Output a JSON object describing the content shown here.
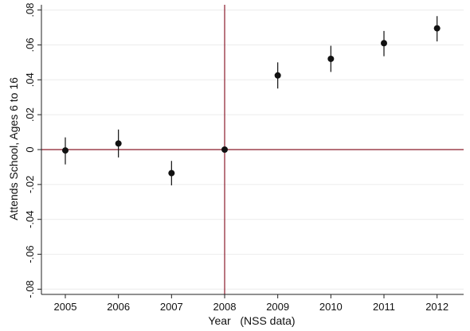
{
  "chart_data": {
    "type": "scatter",
    "title": "",
    "xlabel": "Year   (NSS data)",
    "ylabel": "Attends School, Ages 6 to 16",
    "x": [
      2005,
      2006,
      2007,
      2008,
      2009,
      2010,
      2011,
      2012
    ],
    "series": [
      {
        "values": [
          -0.0005,
          0.0035,
          -0.0135,
          0.0,
          0.0425,
          0.052,
          0.061,
          0.0695
        ],
        "ci_low": [
          -0.0085,
          -0.0045,
          -0.0205,
          0.0,
          0.035,
          0.0445,
          0.0535,
          0.062
        ],
        "ci_high": [
          0.007,
          0.0115,
          -0.0065,
          0.0,
          0.05,
          0.0595,
          0.068,
          0.0765
        ]
      }
    ],
    "xticks": [
      "2005",
      "2006",
      "2007",
      "2008",
      "2009",
      "2010",
      "2011",
      "2012"
    ],
    "yticks": [
      -0.08,
      -0.06,
      -0.04,
      -0.02,
      0,
      0.02,
      0.04,
      0.06,
      0.08
    ],
    "ytick_labels": [
      "-.08",
      "-.06",
      "-.04",
      "-.02",
      "0",
      ".02",
      ".04",
      ".06",
      ".08"
    ],
    "xlim": [
      2004.55,
      2012.5
    ],
    "ylim": [
      -0.083,
      0.083
    ],
    "grid": true,
    "reference_lines": {
      "x": 2008,
      "y": 0,
      "color": "#8b1a2b"
    }
  }
}
